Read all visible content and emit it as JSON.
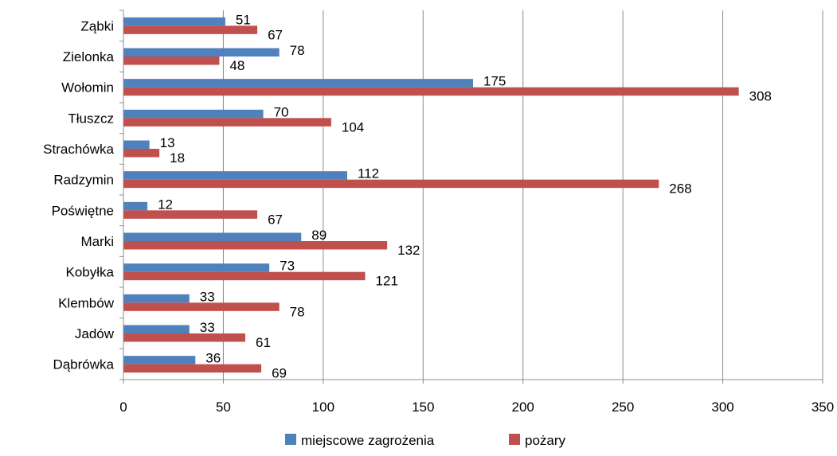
{
  "chart_data": {
    "type": "bar",
    "orientation": "horizontal",
    "categories": [
      "Dąbrówka",
      "Jadów",
      "Klembów",
      "Kobyłka",
      "Marki",
      "Poświętne",
      "Radzymin",
      "Strachówka",
      "Tłuszcz",
      "Wołomin",
      "Zielonka",
      "Ząbki"
    ],
    "series": [
      {
        "name": "miejscowe zagrożenia",
        "color": "#4F81BD",
        "values": [
          36,
          33,
          33,
          73,
          89,
          12,
          112,
          13,
          70,
          175,
          78,
          51
        ]
      },
      {
        "name": "pożary",
        "color": "#C0504D",
        "values": [
          69,
          61,
          78,
          121,
          132,
          67,
          268,
          18,
          104,
          308,
          48,
          67
        ]
      }
    ],
    "xlim": [
      0,
      350
    ],
    "xticks": [
      "0",
      "50",
      "100",
      "150",
      "200",
      "250",
      "300",
      "350"
    ],
    "grid": true,
    "legend_position": "bottom",
    "title": "",
    "xlabel": "",
    "ylabel": ""
  }
}
